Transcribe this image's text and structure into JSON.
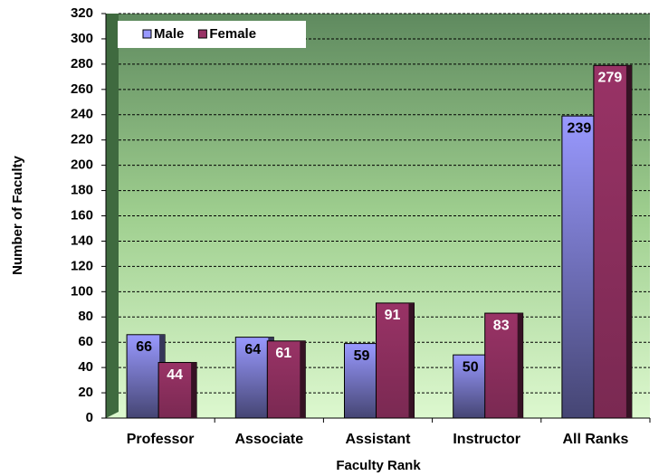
{
  "chart_data": {
    "type": "bar",
    "x_label": "Faculty Rank",
    "y_label": "Number of Faculty",
    "categories": [
      "Professor",
      "Associate",
      "Assistant",
      "Instructor",
      "All Ranks"
    ],
    "series": [
      {
        "name": "Male",
        "color": "#9999ff",
        "values": [
          66,
          64,
          59,
          50,
          239
        ]
      },
      {
        "name": "Female",
        "color": "#993366",
        "values": [
          44,
          61,
          91,
          83,
          279
        ]
      }
    ],
    "ylim": [
      0,
      320
    ],
    "yticks": [
      0,
      20,
      40,
      60,
      80,
      100,
      120,
      140,
      160,
      180,
      200,
      220,
      240,
      260,
      280,
      300,
      320
    ],
    "grid": true,
    "legend": "top-left"
  }
}
